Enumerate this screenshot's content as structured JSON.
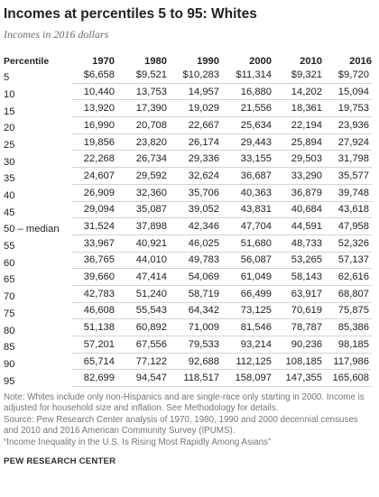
{
  "title": "Incomes at percentiles 5 to 95: Whites",
  "subtitle": "Incomes in 2016 dollars",
  "chart_data": {
    "type": "table",
    "row_header": "Percentile",
    "columns": [
      "1970",
      "1980",
      "1990",
      "2000",
      "2010",
      "2016"
    ],
    "rows": [
      {
        "percentile": "5",
        "values": [
          "$6,658",
          "$9,521",
          "$10,283",
          "$11,314",
          "$9,321",
          "$9,720"
        ]
      },
      {
        "percentile": "10",
        "values": [
          "10,440",
          "13,753",
          "14,957",
          "16,880",
          "14,202",
          "15,094"
        ]
      },
      {
        "percentile": "15",
        "values": [
          "13,920",
          "17,390",
          "19,029",
          "21,556",
          "18,361",
          "19,753"
        ]
      },
      {
        "percentile": "20",
        "values": [
          "16,990",
          "20,708",
          "22,667",
          "25,634",
          "22,194",
          "23,936"
        ]
      },
      {
        "percentile": "25",
        "values": [
          "19,856",
          "23,820",
          "26,174",
          "29,443",
          "25,894",
          "27,924"
        ]
      },
      {
        "percentile": "30",
        "values": [
          "22,268",
          "26,734",
          "29,336",
          "33,155",
          "29,503",
          "31,798"
        ]
      },
      {
        "percentile": "35",
        "values": [
          "24,607",
          "29,592",
          "32,624",
          "36,687",
          "33,290",
          "35,577"
        ]
      },
      {
        "percentile": "40",
        "values": [
          "26,909",
          "32,360",
          "35,706",
          "40,363",
          "36,879",
          "39,748"
        ]
      },
      {
        "percentile": "45",
        "values": [
          "29,094",
          "35,087",
          "39,052",
          "43,831",
          "40,684",
          "43,618"
        ]
      },
      {
        "percentile": "50 – median",
        "values": [
          "31,524",
          "37,898",
          "42,346",
          "47,704",
          "44,591",
          "47,958"
        ]
      },
      {
        "percentile": "55",
        "values": [
          "33,967",
          "40,921",
          "46,025",
          "51,680",
          "48,733",
          "52,326"
        ]
      },
      {
        "percentile": "60",
        "values": [
          "36,765",
          "44,010",
          "49,783",
          "56,087",
          "53,265",
          "57,137"
        ]
      },
      {
        "percentile": "65",
        "values": [
          "39,660",
          "47,414",
          "54,069",
          "61,049",
          "58,143",
          "62,616"
        ]
      },
      {
        "percentile": "70",
        "values": [
          "42,783",
          "51,240",
          "58,719",
          "66,499",
          "63,917",
          "68,807"
        ]
      },
      {
        "percentile": "75",
        "values": [
          "46,608",
          "55,543",
          "64,342",
          "73,125",
          "70,619",
          "75,875"
        ]
      },
      {
        "percentile": "80",
        "values": [
          "51,138",
          "60,892",
          "71,009",
          "81,546",
          "78,787",
          "85,386"
        ]
      },
      {
        "percentile": "85",
        "values": [
          "57,201",
          "67,556",
          "79,533",
          "93,214",
          "90,236",
          "98,185"
        ]
      },
      {
        "percentile": "90",
        "values": [
          "65,714",
          "77,122",
          "92,688",
          "112,125",
          "108,185",
          "117,986"
        ]
      },
      {
        "percentile": "95",
        "values": [
          "82,699",
          "94,547",
          "118,517",
          "158,097",
          "147,355",
          "165,608"
        ]
      }
    ]
  },
  "notes": {
    "note": "Note: Whites include only non-Hispanics and are single-race only starting in 2000. Income is adjusted for household size and inflation. See Methodology for details.",
    "source": "Source: Pew Research Center analysis of 1970, 1980, 1990 and 2000 decennial censuses and 2010 and 2016 American Community Survey (IPUMS).",
    "report": "“Income Inequality in the U.S. Is Rising Most Rapidly Among Asians”"
  },
  "logo_text": "PEW RESEARCH CENTER"
}
